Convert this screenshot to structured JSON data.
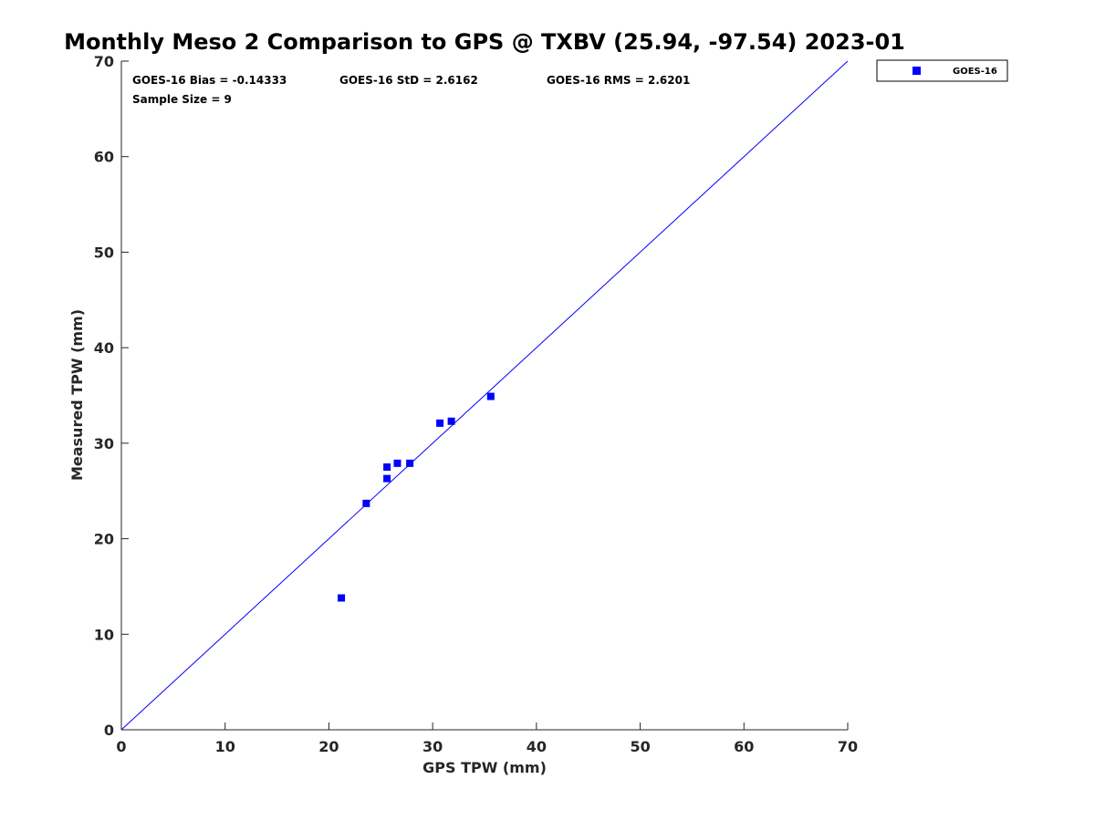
{
  "chart_data": {
    "type": "scatter",
    "title": "Monthly Meso 2 Comparison to GPS @ TXBV (25.94, -97.54) 2023-01",
    "xlabel": "GPS TPW (mm)",
    "ylabel": "Measured TPW (mm)",
    "xlim": [
      0,
      70
    ],
    "ylim": [
      0,
      70
    ],
    "xticks": [
      0,
      10,
      20,
      30,
      40,
      50,
      60,
      70
    ],
    "yticks": [
      0,
      10,
      20,
      30,
      40,
      50,
      60,
      70
    ],
    "grid": false,
    "legend_position": "outside top-right",
    "reference_line": {
      "from": [
        0,
        0
      ],
      "to": [
        70,
        70
      ],
      "color": "#0000ff"
    },
    "series": [
      {
        "name": "GOES-16",
        "marker": "square",
        "color": "#0000ff",
        "points": [
          {
            "x": 21.2,
            "y": 13.8
          },
          {
            "x": 23.6,
            "y": 23.7
          },
          {
            "x": 25.6,
            "y": 27.5
          },
          {
            "x": 25.6,
            "y": 26.3
          },
          {
            "x": 26.6,
            "y": 27.9
          },
          {
            "x": 27.8,
            "y": 27.9
          },
          {
            "x": 30.7,
            "y": 32.1
          },
          {
            "x": 31.8,
            "y": 32.3
          },
          {
            "x": 35.6,
            "y": 34.9
          }
        ]
      }
    ],
    "stats": {
      "bias": "GOES-16 Bias = -0.14333",
      "std": "GOES-16 StD = 2.6162",
      "rms": "GOES-16 RMS = 2.6201",
      "sample_size": "Sample Size = 9"
    }
  }
}
